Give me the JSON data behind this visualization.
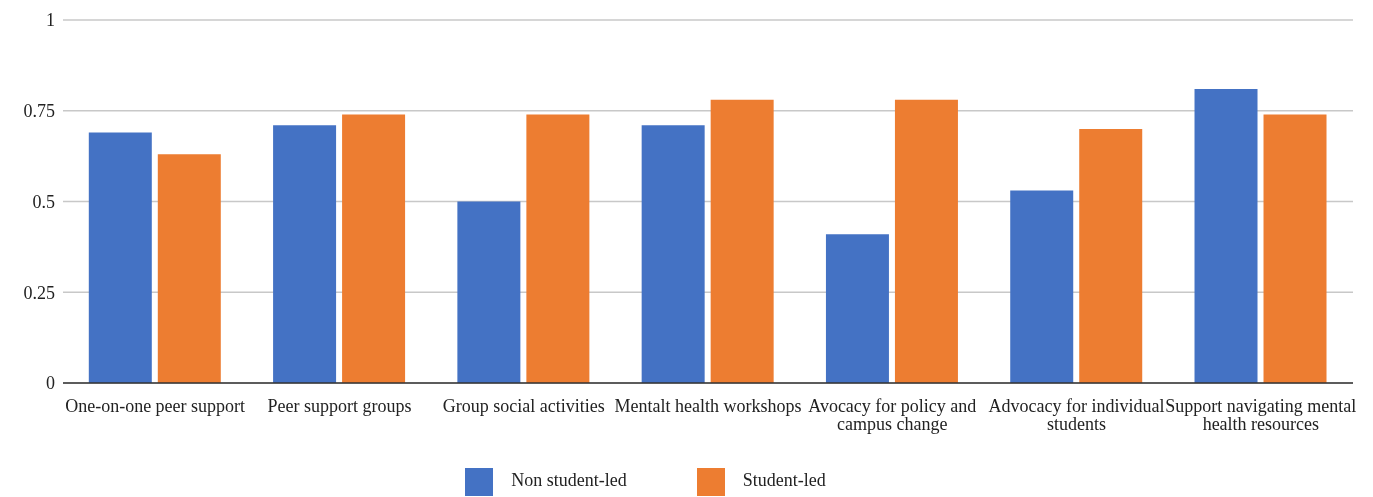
{
  "chart_data": {
    "type": "bar",
    "categories": [
      "One-on-one peer support",
      "Peer support groups",
      "Group social activities",
      "Mentalt health workshops",
      "Avocacy for policy and campus change",
      "Advocacy for individual students",
      "Support navigating mental health resources"
    ],
    "series": [
      {
        "name": "Non student-led",
        "color": "#4472c4",
        "values": [
          0.69,
          0.71,
          0.5,
          0.71,
          0.41,
          0.53,
          0.81
        ]
      },
      {
        "name": "Student-led",
        "color": "#ed7d31",
        "values": [
          0.63,
          0.74,
          0.74,
          0.78,
          0.78,
          0.7,
          0.74
        ]
      }
    ],
    "ylim": [
      0,
      1
    ],
    "yticks": [
      0,
      0.25,
      0.5,
      0.75,
      1
    ],
    "grid": "y",
    "legend": "bottom"
  }
}
